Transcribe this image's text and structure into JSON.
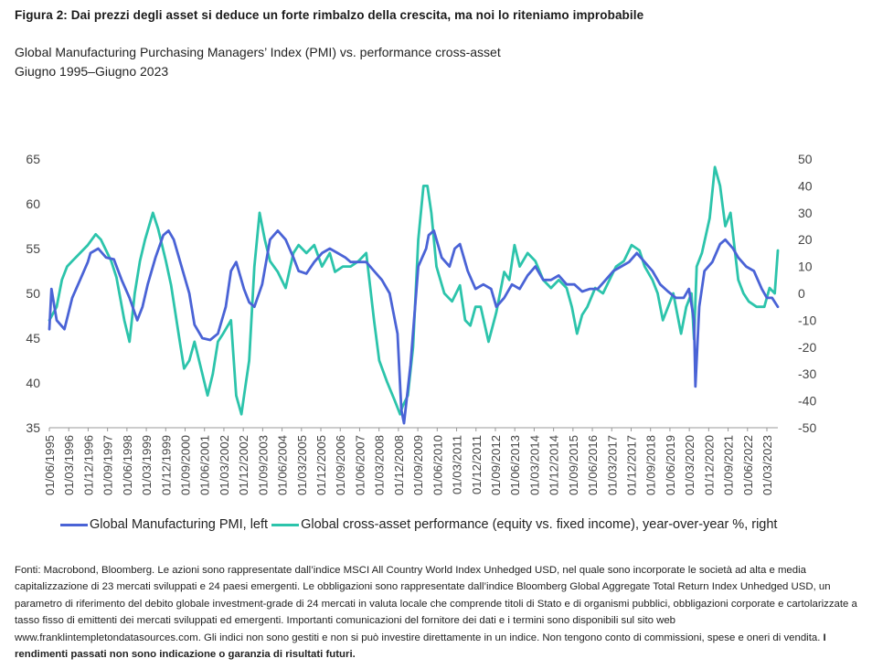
{
  "figure": {
    "title": "Figura 2: Dai prezzi degli asset si deduce un forte rimbalzo della crescita, ma noi lo riteniamo improbabile",
    "subtitle": "Global Manufacturing Purchasing Managers’ Index (PMI) vs. performance cross-asset",
    "period": "Giugno 1995–Giugno 2023"
  },
  "footnote": {
    "text": "Fonti: Macrobond, Bloomberg. Le azioni sono rappresentate dall’indice MSCI All Country World Index Unhedged USD, nel quale sono incorporate le società ad alta e media capitalizzazione di 23 mercati sviluppati e 24 paesi emergenti. Le obbligazioni sono rappresentate dall’indice Bloomberg Global Aggregate Total Return Index Unhedged USD, un parametro di riferimento del debito globale investment-grade di 24 mercati in valuta locale che comprende titoli di Stato e di organismi pubblici, obbligazioni corporate e cartolarizzate a tasso fisso di emittenti dei mercati sviluppati ed emergenti. Importanti comunicazioni del fornitore dei dati e i termini sono disponibili sul sito web www.franklintempletondatasources.com. Gli indici non sono gestiti e non si può investire direttamente in un indice. Non tengono conto di commissioni, spese e oneri di vendita. ",
    "bold_text": "I rendimenti passati non sono indicazione o garanzia di risultati futuri."
  },
  "colors": {
    "pmi": "#4a63d6",
    "cross_asset": "#2cc4ab",
    "grid": "#dddddd",
    "axis_text": "#444444"
  },
  "chart_data": {
    "type": "line",
    "x_ticks": [
      "01/06/1995",
      "01/03/1996",
      "01/12/1996",
      "01/09/1997",
      "01/06/1998",
      "01/03/1999",
      "01/12/1999",
      "01/09/2000",
      "01/06/2001",
      "01/03/2002",
      "01/12/2002",
      "01/09/2003",
      "01/06/2004",
      "01/03/2005",
      "01/12/2005",
      "01/09/2006",
      "01/06/2007",
      "01/03/2008",
      "01/12/2008",
      "01/09/2009",
      "01/06/2010",
      "01/03/2011",
      "01/12/2011",
      "01/09/2012",
      "01/06/2013",
      "01/03/2014",
      "01/12/2014",
      "01/09/2015",
      "01/06/2016",
      "01/03/2017",
      "01/12/2017",
      "01/09/2018",
      "01/06/2019",
      "01/03/2020",
      "01/12/2020",
      "01/09/2021",
      "01/06/2022",
      "01/03/2023"
    ],
    "x_range": [
      1995.42,
      2023.42
    ],
    "y_left": {
      "range": [
        35,
        65
      ],
      "ticks": [
        "35",
        "40",
        "45",
        "50",
        "55",
        "60",
        "65"
      ]
    },
    "y_right": {
      "range": [
        -50,
        50
      ],
      "ticks": [
        "-50",
        "-40",
        "-30",
        "-20",
        "-10",
        "0",
        "10",
        "20",
        "30",
        "40",
        "50"
      ]
    },
    "series": [
      {
        "name": "Global Manufacturing PMI, left",
        "axis": "left",
        "x": [
          1995.42,
          1995.5,
          1995.7,
          1996.0,
          1996.3,
          1996.6,
          1996.9,
          1997.0,
          1997.3,
          1997.6,
          1997.9,
          1998.2,
          1998.5,
          1998.8,
          1999.0,
          1999.2,
          1999.5,
          1999.8,
          2000.0,
          2000.2,
          2000.5,
          2000.8,
          2001.0,
          2001.3,
          2001.6,
          2001.9,
          2002.2,
          2002.4,
          2002.6,
          2002.9,
          2003.1,
          2003.3,
          2003.6,
          2003.9,
          2004.2,
          2004.5,
          2004.8,
          2005.0,
          2005.3,
          2005.6,
          2005.9,
          2006.2,
          2006.5,
          2006.8,
          2007.0,
          2007.3,
          2007.6,
          2007.9,
          2008.2,
          2008.5,
          2008.8,
          2008.95,
          2009.05,
          2009.3,
          2009.6,
          2009.9,
          2010.0,
          2010.2,
          2010.5,
          2010.8,
          2011.0,
          2011.2,
          2011.5,
          2011.8,
          2012.1,
          2012.4,
          2012.6,
          2012.9,
          2013.2,
          2013.5,
          2013.8,
          2014.1,
          2014.4,
          2014.7,
          2015.0,
          2015.3,
          2015.6,
          2015.9,
          2016.2,
          2016.5,
          2016.8,
          2017.1,
          2017.4,
          2017.7,
          2018.0,
          2018.3,
          2018.6,
          2018.9,
          2019.2,
          2019.5,
          2019.8,
          2020.0,
          2020.2,
          2020.25,
          2020.4,
          2020.6,
          2020.9,
          2021.2,
          2021.4,
          2021.7,
          2021.9,
          2022.2,
          2022.5,
          2022.8,
          2023.0,
          2023.2,
          2023.42
        ],
        "values": [
          46,
          50.5,
          47,
          46,
          49.5,
          51.5,
          53.5,
          54.5,
          55,
          54,
          53.8,
          51.5,
          49.5,
          47,
          48.5,
          51,
          54,
          56.5,
          57,
          56,
          53,
          50,
          46.5,
          45,
          44.8,
          45.5,
          48.5,
          52.5,
          53.5,
          50.5,
          49,
          48.5,
          51,
          56,
          57,
          56,
          54,
          52.5,
          52.2,
          53.5,
          54.5,
          55,
          54.5,
          54,
          53.5,
          53.5,
          53.5,
          52.5,
          51.5,
          50,
          45.5,
          37,
          35.5,
          42,
          53,
          55,
          56.5,
          57,
          54,
          53,
          55,
          55.5,
          52.5,
          50.5,
          51,
          50.5,
          48.5,
          49.5,
          51,
          50.5,
          52,
          53,
          51.5,
          51.5,
          52,
          51,
          51,
          50.2,
          50.5,
          50.5,
          51.5,
          52.5,
          53,
          53.5,
          54.5,
          53.5,
          52.5,
          51,
          50.2,
          49.5,
          49.5,
          50.5,
          47,
          39.6,
          48.5,
          52.5,
          53.5,
          55.5,
          56,
          55,
          54,
          53,
          52.5,
          50.5,
          49.5,
          49.5,
          48.5
        ]
      },
      {
        "name": "Global cross-asset performance (equity vs. fixed income), year-over-year %, right",
        "axis": "right",
        "x": [
          1995.42,
          1995.7,
          1995.9,
          1996.1,
          1996.3,
          1996.6,
          1996.9,
          1997.2,
          1997.4,
          1997.6,
          1997.8,
          1998.0,
          1998.3,
          1998.5,
          1998.7,
          1998.9,
          1999.1,
          1999.4,
          1999.6,
          1999.9,
          2000.1,
          2000.4,
          2000.6,
          2000.8,
          2001.0,
          2001.3,
          2001.5,
          2001.7,
          2001.9,
          2002.1,
          2002.4,
          2002.6,
          2002.8,
          2002.95,
          2003.1,
          2003.3,
          2003.5,
          2003.7,
          2003.9,
          2004.2,
          2004.5,
          2004.8,
          2005.0,
          2005.3,
          2005.6,
          2005.9,
          2006.2,
          2006.4,
          2006.7,
          2007.0,
          2007.3,
          2007.6,
          2007.9,
          2008.1,
          2008.4,
          2008.7,
          2008.9,
          2009.0,
          2009.2,
          2009.4,
          2009.6,
          2009.8,
          2009.95,
          2010.1,
          2010.3,
          2010.6,
          2010.9,
          2011.2,
          2011.4,
          2011.6,
          2011.8,
          2012.0,
          2012.3,
          2012.6,
          2012.9,
          2013.1,
          2013.3,
          2013.5,
          2013.8,
          2014.1,
          2014.4,
          2014.7,
          2015.0,
          2015.3,
          2015.5,
          2015.7,
          2015.9,
          2016.1,
          2016.4,
          2016.7,
          2016.95,
          2017.2,
          2017.5,
          2017.8,
          2018.1,
          2018.3,
          2018.6,
          2018.8,
          2019.0,
          2019.2,
          2019.4,
          2019.7,
          2019.9,
          2020.1,
          2020.2,
          2020.3,
          2020.5,
          2020.8,
          2021.0,
          2021.2,
          2021.4,
          2021.6,
          2021.9,
          2022.1,
          2022.3,
          2022.6,
          2022.9,
          2023.1,
          2023.3,
          2023.42
        ],
        "values": [
          -10,
          -5,
          5,
          10,
          12,
          15,
          18,
          22,
          20,
          16,
          12,
          6,
          -10,
          -18,
          0,
          12,
          20,
          30,
          24,
          12,
          3,
          -16,
          -28,
          -25,
          -18,
          -30,
          -38,
          -30,
          -18,
          -15,
          -10,
          -38,
          -45,
          -35,
          -25,
          10,
          30,
          20,
          12,
          8,
          2,
          15,
          18,
          15,
          18,
          10,
          15,
          8,
          10,
          10,
          12,
          15,
          -10,
          -25,
          -33,
          -40,
          -45,
          -42,
          -38,
          -20,
          20,
          40,
          40,
          30,
          10,
          0,
          -3,
          3,
          -10,
          -12,
          -5,
          -5,
          -18,
          -7,
          8,
          5,
          18,
          10,
          15,
          12,
          5,
          2,
          5,
          2,
          -5,
          -15,
          -8,
          -5,
          2,
          0,
          5,
          10,
          12,
          18,
          16,
          10,
          5,
          0,
          -10,
          -5,
          0,
          -15,
          -5,
          0,
          -17,
          10,
          15,
          28,
          47,
          40,
          25,
          30,
          5,
          0,
          -3,
          -5,
          -5,
          2,
          0,
          16
        ]
      }
    ]
  }
}
